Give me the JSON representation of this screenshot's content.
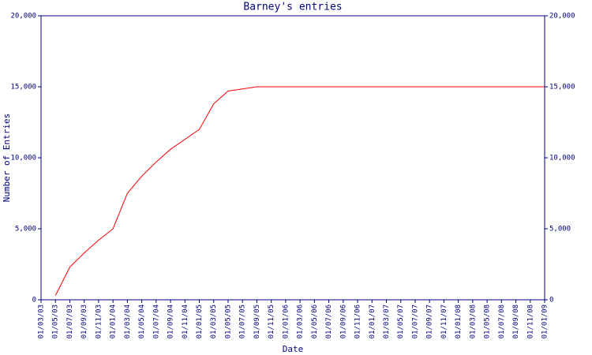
{
  "chart_data": {
    "type": "line",
    "title": "Barney's entries",
    "x_label": "Date",
    "y_label": "Number of Entries",
    "categories": [
      "01/03/03",
      "01/05/03",
      "01/07/03",
      "01/09/03",
      "01/11/03",
      "01/01/04",
      "01/03/04",
      "01/05/04",
      "01/07/04",
      "01/09/04",
      "01/11/04",
      "01/01/05",
      "01/03/05",
      "01/05/05",
      "01/07/05",
      "01/09/05",
      "01/11/05",
      "01/01/06",
      "01/03/06",
      "01/05/06",
      "01/07/06",
      "01/09/06",
      "01/11/06",
      "01/01/07",
      "01/03/07",
      "01/05/07",
      "01/07/07",
      "01/09/07",
      "01/11/07",
      "01/01/08",
      "01/03/08",
      "01/05/08",
      "01/07/08",
      "01/09/08",
      "01/11/08",
      "01/01/09"
    ],
    "series": [
      {
        "name": "Entries",
        "color": "#ff0000",
        "values": [
          null,
          300,
          2300,
          3300,
          4200,
          5000,
          7500,
          8700,
          9700,
          10600,
          11300,
          12000,
          13800,
          14700,
          14850,
          15000,
          15000,
          15000,
          15000,
          15000,
          15000,
          15000,
          15000,
          15000,
          15000,
          15000,
          15000,
          15000,
          15000,
          15000,
          15000,
          15000,
          15000,
          15000,
          15000,
          15000
        ]
      }
    ],
    "ylim": [
      0,
      20000
    ],
    "yticks": [
      0,
      {
        "value": 5000,
        "label": "5,000"
      },
      {
        "value": 10000,
        "label": "10,000"
      },
      {
        "value": 15000,
        "label": "15,000"
      },
      {
        "value": 20000,
        "label": "20,000"
      }
    ],
    "axis_color": "#000080"
  }
}
